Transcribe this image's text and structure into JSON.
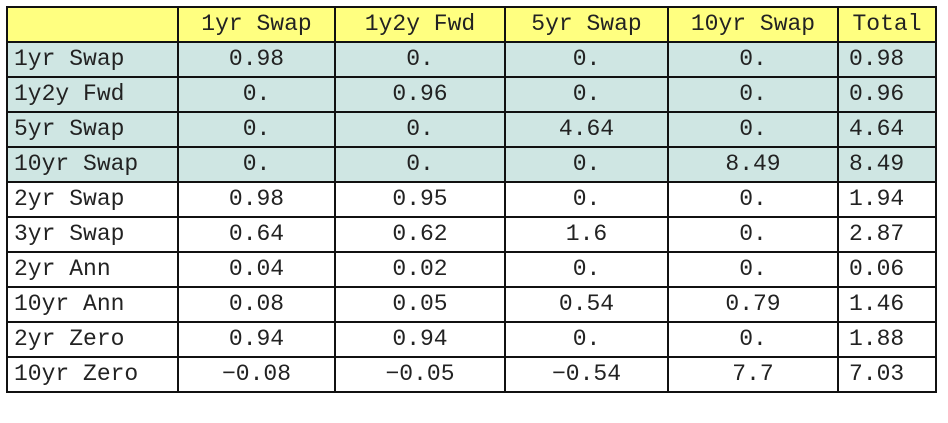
{
  "table": {
    "columns": [
      "1yr Swap",
      "1y2y Fwd",
      "5yr Swap",
      "10yr Swap",
      "Total"
    ],
    "highlight_color": "#cfe6e3",
    "header_color": "#ffff80",
    "rows": [
      {
        "label": "1yr Swap",
        "values": [
          "0.98",
          "0.",
          "0.",
          "0.",
          "0.98"
        ]
      },
      {
        "label": "1y2y Fwd",
        "values": [
          "0.",
          "0.96",
          "0.",
          "0.",
          "0.96"
        ]
      },
      {
        "label": "5yr Swap",
        "values": [
          "0.",
          "0.",
          "4.64",
          "0.",
          "4.64"
        ]
      },
      {
        "label": "10yr Swap",
        "values": [
          "0.",
          "0.",
          "0.",
          "8.49",
          "8.49"
        ]
      },
      {
        "label": "2yr Swap",
        "values": [
          "0.98",
          "0.95",
          "0.",
          "0.",
          "1.94"
        ]
      },
      {
        "label": "3yr Swap",
        "values": [
          "0.64",
          "0.62",
          "1.6",
          "0.",
          "2.87"
        ]
      },
      {
        "label": "2yr Ann",
        "values": [
          "0.04",
          "0.02",
          "0.",
          "0.",
          "0.06"
        ]
      },
      {
        "label": "10yr Ann",
        "values": [
          "0.08",
          "0.05",
          "0.54",
          "0.79",
          "1.46"
        ]
      },
      {
        "label": "2yr Zero",
        "values": [
          "0.94",
          "0.94",
          "0.",
          "0.",
          "1.88"
        ]
      },
      {
        "label": "10yr Zero",
        "values": [
          "−0.08",
          "−0.05",
          "−0.54",
          "7.7",
          "7.03"
        ]
      }
    ]
  }
}
